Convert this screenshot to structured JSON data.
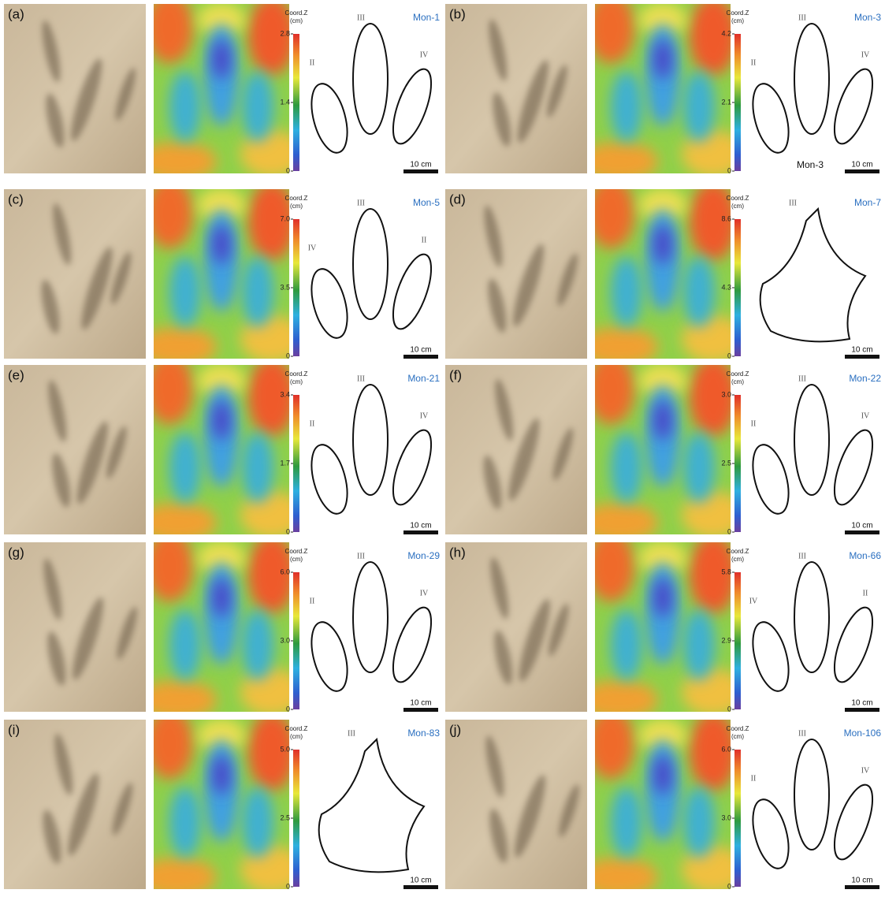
{
  "colorbar_title": "Coord.Z",
  "colorbar_unit": "(cm)",
  "scale_label": "10 cm",
  "panels": [
    {
      "label": "(a)",
      "specimen": "Mon-1",
      "ticks": [
        "2.8",
        "1.4",
        "0"
      ],
      "digits": [
        "II",
        "III",
        "IV"
      ]
    },
    {
      "label": "(b)",
      "specimen": "Mon-3",
      "ticks": [
        "4.2",
        "2.1",
        "0"
      ],
      "digits": [
        "II",
        "III",
        "IV"
      ],
      "drawing_label": "Mon-3"
    },
    {
      "label": "(c)",
      "specimen": "Mon-5",
      "ticks": [
        "7.0",
        "3.5",
        "0"
      ],
      "digits": [
        "IV",
        "III",
        "II"
      ]
    },
    {
      "label": "(d)",
      "specimen": "Mon-7",
      "ticks": [
        "8.6",
        "4.3",
        "0"
      ],
      "digits": [
        "III"
      ]
    },
    {
      "label": "(e)",
      "specimen": "Mon-21",
      "ticks": [
        "3.4",
        "1.7",
        "0"
      ],
      "digits": [
        "II",
        "III",
        "IV"
      ]
    },
    {
      "label": "(f)",
      "specimen": "Mon-22",
      "ticks": [
        "3.0",
        "2.5",
        "0"
      ],
      "digits": [
        "II",
        "III",
        "IV"
      ]
    },
    {
      "label": "(g)",
      "specimen": "Mon-29",
      "ticks": [
        "6.0",
        "3.0",
        "0"
      ],
      "digits": [
        "II",
        "III",
        "IV"
      ]
    },
    {
      "label": "(h)",
      "specimen": "Mon-66",
      "ticks": [
        "5.8",
        "2.9",
        "0"
      ],
      "digits": [
        "IV",
        "III",
        "II"
      ]
    },
    {
      "label": "(i)",
      "specimen": "Mon-83",
      "ticks": [
        "5.0",
        "2.5",
        "0"
      ],
      "digits": [
        "III"
      ]
    },
    {
      "label": "(j)",
      "specimen": "Mon-106",
      "ticks": [
        "6.0",
        "3.0",
        "0"
      ],
      "digits": [
        "II",
        "III",
        "IV"
      ]
    }
  ]
}
